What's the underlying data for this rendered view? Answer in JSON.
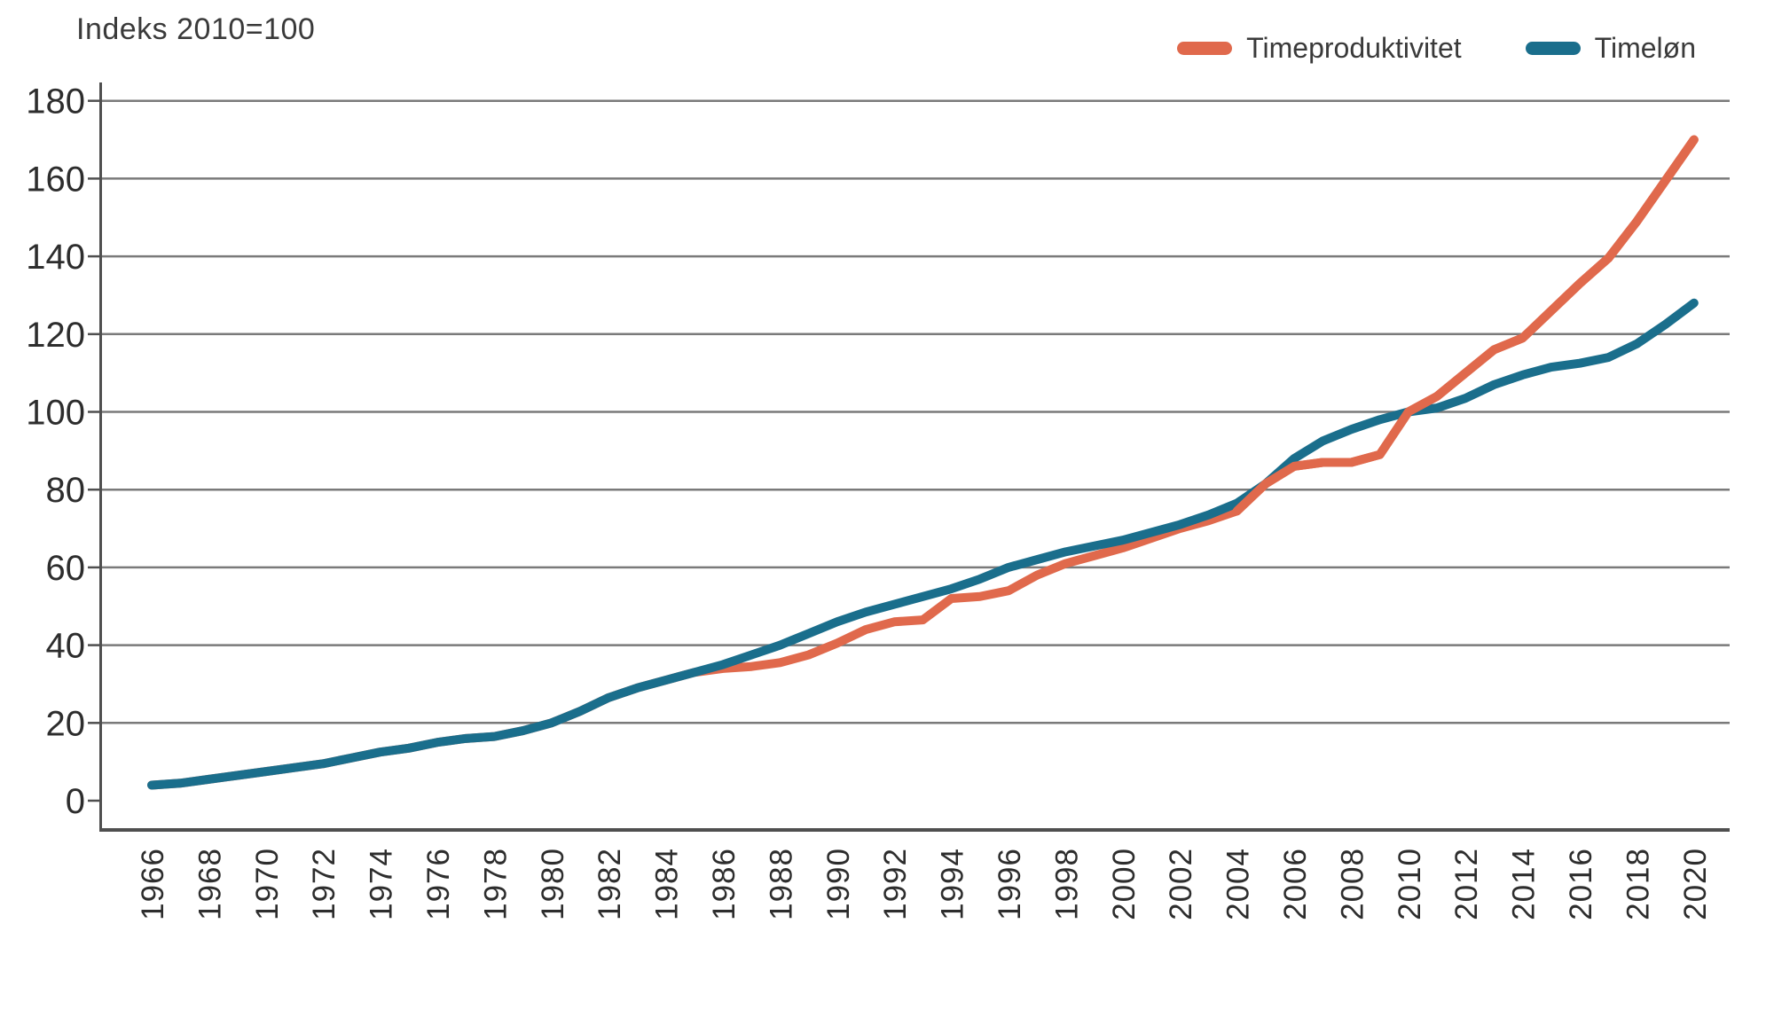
{
  "title": "Indeks 2010=100",
  "legend": {
    "items": [
      {
        "label": "Timeproduktivitet",
        "color": "#E0694C"
      },
      {
        "label": "Timeløn",
        "color": "#1A6E8C"
      }
    ]
  },
  "colors": {
    "orange": "#E0694C",
    "teal": "#1A6E8C",
    "gridline": "#7a7a7a",
    "axis": "#4f4f4f",
    "tick_text": "#2d2d2d"
  },
  "chart_data": {
    "type": "line",
    "title": "Indeks 2010=100",
    "xlabel": "",
    "ylabel": "Indeks 2010=100",
    "x": [
      1966,
      1967,
      1968,
      1969,
      1970,
      1971,
      1972,
      1973,
      1974,
      1975,
      1976,
      1977,
      1978,
      1979,
      1980,
      1981,
      1982,
      1983,
      1984,
      1985,
      1986,
      1987,
      1988,
      1989,
      1990,
      1991,
      1992,
      1993,
      1994,
      1995,
      1996,
      1997,
      1998,
      1999,
      2000,
      2001,
      2002,
      2003,
      2004,
      2005,
      2006,
      2007,
      2008,
      2009,
      2010,
      2011,
      2012,
      2013,
      2014,
      2015,
      2016,
      2017,
      2018,
      2019,
      2020
    ],
    "series": [
      {
        "name": "Timeproduktivitet",
        "color": "#E0694C",
        "values": [
          4,
          4.5,
          5.5,
          6.5,
          7.5,
          8.5,
          9.5,
          11,
          12.5,
          13.5,
          15,
          16,
          16.5,
          18,
          20,
          23,
          26.5,
          29,
          31,
          33,
          34,
          34.5,
          35.5,
          37.5,
          40.5,
          44,
          46,
          46.5,
          52,
          52.5,
          54,
          58,
          61,
          63,
          65,
          67.5,
          70,
          72,
          74.5,
          81.5,
          86,
          87,
          87,
          89,
          100,
          104,
          110,
          116,
          119,
          126,
          133,
          139.5,
          149,
          159.5,
          170
        ]
      },
      {
        "name": "Timeløn",
        "color": "#1A6E8C",
        "values": [
          4,
          4.5,
          5.5,
          6.5,
          7.5,
          8.5,
          9.5,
          11,
          12.5,
          13.5,
          15,
          16,
          16.5,
          18,
          20,
          23,
          26.5,
          29,
          31,
          33,
          35,
          37.5,
          40,
          43,
          46,
          48.5,
          50.5,
          52.5,
          54.5,
          57,
          60,
          62,
          64,
          65.5,
          67,
          69,
          71,
          73.5,
          76.5,
          81.5,
          88,
          92.5,
          95.5,
          98,
          100,
          101,
          103.5,
          107,
          109.5,
          111.5,
          112.5,
          114,
          117.5,
          122.5,
          128
        ]
      }
    ],
    "x_tick_labels": [
      "1966",
      "1968",
      "1970",
      "1972",
      "1974",
      "1976",
      "1978",
      "1980",
      "1982",
      "1984",
      "1986",
      "1988",
      "1990",
      "1992",
      "1994",
      "1996",
      "1998",
      "2000",
      "2002",
      "2004",
      "2006",
      "2008",
      "2010",
      "2012",
      "2014",
      "2016",
      "2018",
      "2020"
    ],
    "y_ticks": [
      0,
      20,
      40,
      60,
      80,
      100,
      120,
      140,
      160,
      180
    ],
    "ylim": [
      0,
      180
    ],
    "xlim": [
      1966,
      2021
    ],
    "grid": "horizontal",
    "legend_position": "top-right"
  }
}
